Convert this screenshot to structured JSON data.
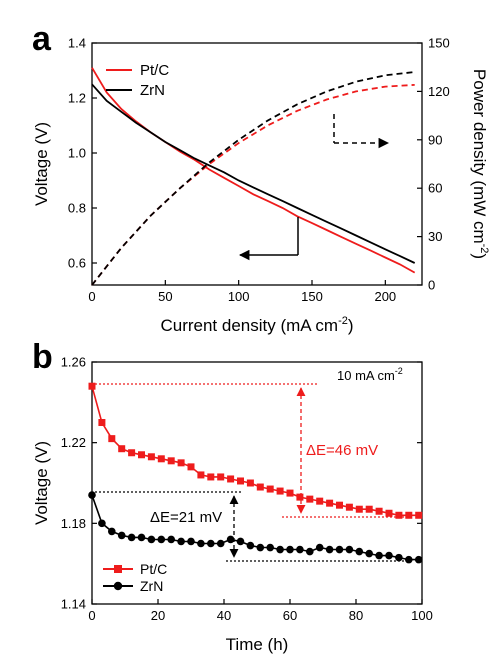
{
  "chart_data": [
    {
      "panel_label": "a",
      "type": "line",
      "xlabel": "Current density (mA cm",
      "xlabel_sup": "-2",
      "xlabel_end": ")",
      "ylabel": "Voltage (V)",
      "y2label": "Power density (mW cm",
      "y2label_sup": "-2",
      "y2label_end": ")",
      "xlim": [
        0,
        225
      ],
      "ylim": [
        0.52,
        1.4
      ],
      "y2lim": [
        0,
        150
      ],
      "xticks": [
        0,
        50,
        100,
        150,
        200
      ],
      "yticks": [
        0.6,
        0.8,
        1.0,
        1.2,
        1.4
      ],
      "ytick_labels": [
        "0.6",
        "0.8",
        "1.0",
        "1.2",
        "1.4"
      ],
      "y2ticks": [
        0,
        30,
        60,
        90,
        120,
        150
      ],
      "legend_position": "top-left",
      "colors": {
        "Pt/C": "#ee1c1c",
        "ZrN": "#000000"
      },
      "series": [
        {
          "name": "Pt/C",
          "kind": "voltage",
          "axis": "left",
          "style": "solid",
          "x": [
            0,
            10,
            20,
            30,
            40,
            50,
            60,
            70,
            80,
            90,
            100,
            110,
            120,
            130,
            140,
            150,
            160,
            170,
            180,
            190,
            200,
            210,
            220
          ],
          "y": [
            1.31,
            1.22,
            1.16,
            1.115,
            1.075,
            1.04,
            1.005,
            0.975,
            0.94,
            0.91,
            0.88,
            0.85,
            0.825,
            0.8,
            0.77,
            0.745,
            0.72,
            0.695,
            0.67,
            0.645,
            0.62,
            0.595,
            0.565
          ]
        },
        {
          "name": "ZrN",
          "kind": "voltage",
          "axis": "left",
          "style": "solid",
          "x": [
            0,
            10,
            20,
            30,
            40,
            50,
            60,
            70,
            80,
            90,
            100,
            110,
            120,
            130,
            140,
            150,
            160,
            170,
            180,
            190,
            200,
            210,
            220
          ],
          "y": [
            1.25,
            1.19,
            1.15,
            1.11,
            1.075,
            1.04,
            1.01,
            0.98,
            0.955,
            0.93,
            0.9,
            0.875,
            0.85,
            0.825,
            0.8,
            0.775,
            0.75,
            0.725,
            0.7,
            0.675,
            0.65,
            0.625,
            0.6
          ]
        },
        {
          "name": "Pt/C",
          "kind": "power",
          "axis": "right",
          "style": "dashed",
          "x": [
            0,
            20,
            40,
            60,
            80,
            100,
            120,
            140,
            160,
            180,
            200,
            220
          ],
          "y": [
            0,
            23,
            43,
            60,
            75,
            88,
            99,
            108,
            115,
            120,
            123,
            124
          ]
        },
        {
          "name": "ZrN",
          "kind": "power",
          "axis": "right",
          "style": "dashed",
          "x": [
            0,
            20,
            40,
            60,
            80,
            100,
            120,
            140,
            160,
            180,
            200,
            220
          ],
          "y": [
            0,
            23,
            43,
            60,
            76,
            90,
            102,
            112,
            120,
            126,
            130,
            132
          ]
        }
      ]
    },
    {
      "panel_label": "b",
      "type": "line",
      "xlabel": "Time (h)",
      "ylabel": "Voltage (V)",
      "xlim": [
        0,
        100
      ],
      "ylim": [
        1.14,
        1.26
      ],
      "xticks": [
        0,
        20,
        40,
        60,
        80,
        100
      ],
      "yticks": [
        1.14,
        1.18,
        1.22,
        1.26
      ],
      "legend_position": "bottom-left",
      "colors": {
        "Pt/C": "#ee1c1c",
        "ZrN": "#000000"
      },
      "annotations": {
        "condition_main": "10 mA cm",
        "condition_sup": "-2",
        "delta_ptc": "ΔE=46 mV",
        "delta_zrn": "ΔE=21 mV"
      },
      "series": [
        {
          "name": "Pt/C",
          "marker": "square",
          "x": [
            0,
            3,
            6,
            9,
            12,
            15,
            18,
            21,
            24,
            27,
            30,
            33,
            36,
            39,
            42,
            45,
            48,
            51,
            54,
            57,
            60,
            63,
            66,
            69,
            72,
            75,
            78,
            81,
            84,
            87,
            90,
            93,
            96,
            99
          ],
          "y": [
            1.248,
            1.23,
            1.222,
            1.217,
            1.215,
            1.214,
            1.213,
            1.212,
            1.211,
            1.21,
            1.208,
            1.204,
            1.203,
            1.203,
            1.202,
            1.201,
            1.2,
            1.198,
            1.197,
            1.196,
            1.195,
            1.193,
            1.192,
            1.191,
            1.19,
            1.189,
            1.188,
            1.187,
            1.187,
            1.186,
            1.185,
            1.184,
            1.184,
            1.184
          ]
        },
        {
          "name": "ZrN",
          "marker": "circle",
          "x": [
            0,
            3,
            6,
            9,
            12,
            15,
            18,
            21,
            24,
            27,
            30,
            33,
            36,
            39,
            42,
            45,
            48,
            51,
            54,
            57,
            60,
            63,
            66,
            69,
            72,
            75,
            78,
            81,
            84,
            87,
            90,
            93,
            96,
            99
          ],
          "y": [
            1.194,
            1.18,
            1.176,
            1.174,
            1.173,
            1.173,
            1.172,
            1.172,
            1.172,
            1.171,
            1.171,
            1.17,
            1.17,
            1.17,
            1.172,
            1.171,
            1.169,
            1.168,
            1.168,
            1.167,
            1.167,
            1.167,
            1.166,
            1.168,
            1.167,
            1.167,
            1.167,
            1.166,
            1.165,
            1.164,
            1.164,
            1.163,
            1.162,
            1.162
          ]
        }
      ]
    }
  ]
}
